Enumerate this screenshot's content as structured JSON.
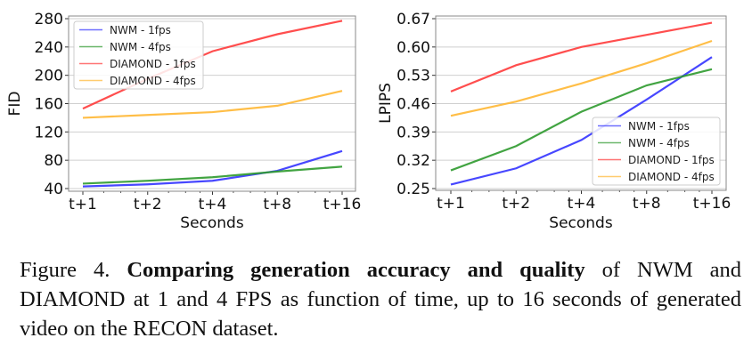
{
  "chart_data": [
    {
      "type": "line",
      "title": "",
      "xlabel": "Seconds",
      "ylabel": "FID",
      "categories": [
        "t+1",
        "t+2",
        "t+4",
        "t+8",
        "t+16"
      ],
      "x_scale": "log2",
      "ylim": [
        40,
        280
      ],
      "yticks": [
        40,
        80,
        120,
        160,
        200,
        240,
        280
      ],
      "grid": "horizontal",
      "legend_position": "top-left",
      "series": [
        {
          "name": "NWM - 1fps",
          "color": "#3333ff",
          "values": [
            43,
            46,
            51,
            65,
            93
          ]
        },
        {
          "name": "NWM - 4fps",
          "color": "#2e9a2e",
          "values": [
            47,
            51,
            56,
            64,
            71
          ]
        },
        {
          "name": "DIAMOND - 1fps",
          "color": "#ff3b3b",
          "values": [
            153,
            195,
            234,
            258,
            277
          ]
        },
        {
          "name": "DIAMOND - 4fps",
          "color": "#ffb733",
          "values": [
            140,
            144,
            148,
            157,
            178
          ]
        }
      ]
    },
    {
      "type": "line",
      "title": "",
      "xlabel": "Seconds",
      "ylabel": "LPIPS",
      "categories": [
        "t+1",
        "t+2",
        "t+4",
        "t+8",
        "t+16"
      ],
      "x_scale": "log2",
      "ylim": [
        0.25,
        0.67
      ],
      "yticks": [
        "0.25",
        "0.32",
        "0.39",
        "0.46",
        "0.53",
        "0.60",
        "0.67"
      ],
      "grid": "horizontal",
      "legend_position": "bottom-right",
      "series": [
        {
          "name": "NWM - 1fps",
          "color": "#3333ff",
          "values": [
            0.26,
            0.3,
            0.37,
            0.47,
            0.575
          ]
        },
        {
          "name": "NWM - 4fps",
          "color": "#2e9a2e",
          "values": [
            0.295,
            0.355,
            0.44,
            0.505,
            0.545
          ]
        },
        {
          "name": "DIAMOND - 1fps",
          "color": "#ff3b3b",
          "values": [
            0.49,
            0.555,
            0.6,
            0.63,
            0.66
          ]
        },
        {
          "name": "DIAMOND - 4fps",
          "color": "#ffb733",
          "values": [
            0.43,
            0.465,
            0.51,
            0.56,
            0.615
          ]
        }
      ]
    }
  ],
  "caption": {
    "label": "Figure 4.",
    "bold": "Comparing generation accuracy and quality",
    "rest": "of NWM and DIAMOND at 1 and 4 FPS as function of time, up to 16 seconds of generated video on the RECON dataset."
  }
}
